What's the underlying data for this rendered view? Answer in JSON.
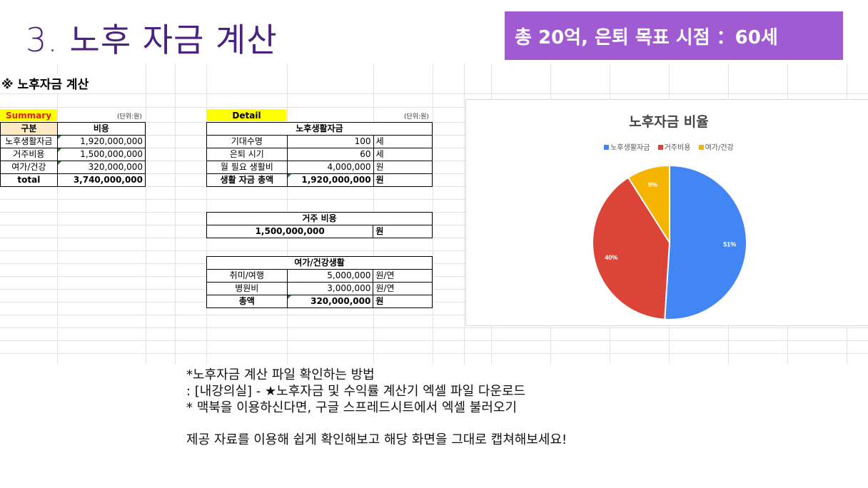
{
  "slide": {
    "title": "3. 노후 자금 계산",
    "banner": "총 20억, 은퇴 목표 시점 ：60세"
  },
  "sheet": {
    "heading": "※ 노후자금 계산",
    "summary": {
      "tag": "Summary",
      "unit": "(단위:원)",
      "headers": [
        "구분",
        "비용"
      ],
      "rows": [
        {
          "label": "노후생활자금",
          "value": "1,920,000,000"
        },
        {
          "label": "거주비용",
          "value": "1,500,000,000"
        },
        {
          "label": "여가/건강",
          "value": "320,000,000"
        }
      ],
      "total_label": "total",
      "total_value": "3,740,000,000"
    },
    "detail": {
      "tag": "Detail",
      "unit": "(단위:원)",
      "living": {
        "title": "노후생활자금",
        "rows": [
          {
            "label": "기대수명",
            "value": "100",
            "unit": "세"
          },
          {
            "label": "은퇴 시기",
            "value": "60",
            "unit": "세"
          },
          {
            "label": "월 필요 생활비",
            "value": "4,000,000",
            "unit": "원"
          }
        ],
        "total_label": "생활 자금 총액",
        "total_value": "1,920,000,000",
        "total_unit": "원"
      },
      "housing": {
        "title": "거주 비용",
        "value": "1,500,000,000",
        "unit": "원"
      },
      "leisure": {
        "title": "여가/건강생활",
        "rows": [
          {
            "label": "취미/여행",
            "value": "5,000,000",
            "unit": "원/연"
          },
          {
            "label": "병원비",
            "value": "3,000,000",
            "unit": "원/연"
          }
        ],
        "total_label": "총액",
        "total_value": "320,000,000",
        "total_unit": "원"
      }
    }
  },
  "chart_data": {
    "type": "pie",
    "title": "노후자금 비율",
    "legend_position": "top",
    "categories": [
      "노후생활자금",
      "거주비용",
      "여가/건강"
    ],
    "values": [
      51,
      40,
      9
    ],
    "labels": [
      "51%",
      "40%",
      "9%"
    ],
    "colors": [
      "#4285f4",
      "#db4437",
      "#f4b400"
    ]
  },
  "notes": {
    "lines": [
      "*노후자금 계산 파일 확인하는 방법",
      ": [내강의실] - ★노후자금 및 수익률 계산기 엑셀 파일 다운로드",
      "* 맥북을 이용하신다면, 구글 스프레드시트에서 엑셀 불러오기"
    ],
    "closing": "제공 자료를 이용해 쉽게 확인해보고 해당 화면을 그대로 캡쳐해보세요!"
  }
}
